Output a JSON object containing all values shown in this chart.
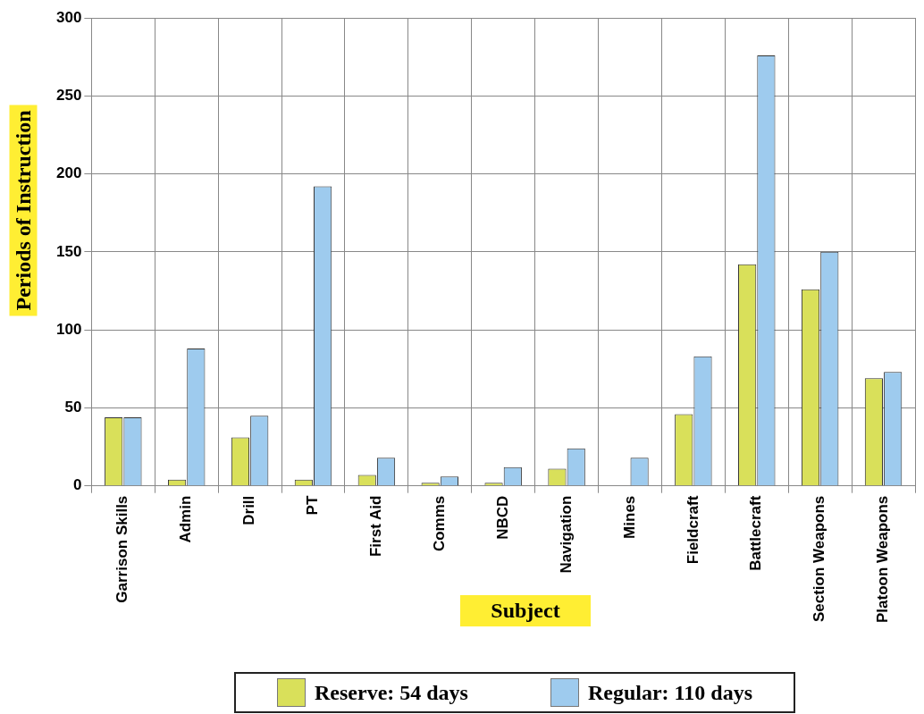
{
  "chart_data": {
    "type": "bar",
    "xlabel": "Subject",
    "ylabel": "Periods of Instruction",
    "categories": [
      "Garrison Skills",
      "Admin",
      "Drill",
      "PT",
      "First Aid",
      "Comms",
      "NBCD",
      "Navigation",
      "Mines",
      "Fieldcraft",
      "Battlecraft",
      "Section Weapons",
      "Platoon Weapons"
    ],
    "series": [
      {
        "name": "Reserve: 54 days",
        "color": "#d9e05a",
        "values": [
          44,
          4,
          31,
          4,
          7,
          2,
          2,
          11,
          0,
          46,
          142,
          126,
          69
        ]
      },
      {
        "name": "Regular: 110 days",
        "color": "#9ecbee",
        "values": [
          44,
          88,
          45,
          192,
          18,
          6,
          12,
          24,
          18,
          83,
          276,
          150,
          73
        ]
      }
    ],
    "ylim": [
      0,
      300
    ],
    "yticks": [
      0,
      50,
      100,
      150,
      200,
      250,
      300
    ],
    "grid": true,
    "legend": "bottom"
  }
}
